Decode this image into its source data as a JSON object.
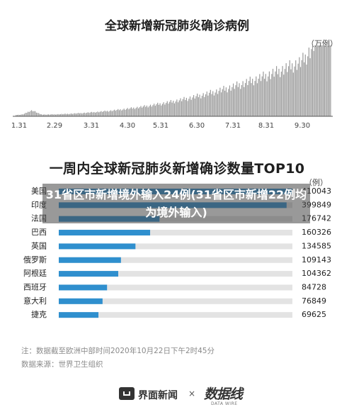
{
  "overlay_text": "31省区市新增境外输入24例(31省区市新增22例均为境外输入)",
  "note": "注：数据截至欧洲中部时间2020年10月22日下午2时45分",
  "source": "数据来源：世界卫生组织",
  "footer": {
    "brand1": "界面新闻",
    "separator": "×",
    "brand2": "数据线",
    "brand2_sub": "DATA WIRE"
  },
  "chart_data": [
    {
      "type": "bar",
      "title": "全球新增新冠肺炎确诊病例",
      "unit": "（万例）",
      "tick_labels": [
        "1.31",
        "2.29",
        "3.31",
        "4.30",
        "5.31",
        "6.30",
        "7.31",
        "8.31",
        "9.30"
      ],
      "color": "#9a9a9a"
    },
    {
      "type": "bar",
      "orientation": "horizontal",
      "title": "一周内全球新冠肺炎新增确诊数量TOP10",
      "unit": "（例）",
      "color": "#2f8fce",
      "track_color": "#e3e3e3",
      "categories": [
        "美国",
        "印度",
        "法国",
        "巴西",
        "英国",
        "俄罗斯",
        "阿根廷",
        "西班牙",
        "意大利",
        "捷克"
      ],
      "values": [
        410043,
        399849,
        176742,
        160326,
        134585,
        109143,
        104362,
        84728,
        76849,
        69625
      ],
      "value_labels": [
        "410043",
        "399849",
        "176742",
        "160326",
        "134585",
        "109143",
        "104362",
        "84728",
        "76849",
        "69625"
      ]
    }
  ]
}
